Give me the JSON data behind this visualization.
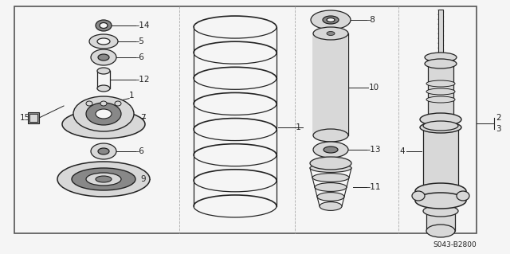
{
  "bg_color": "#f5f5f5",
  "border_color": "#555555",
  "line_color": "#222222",
  "part_fill": "#d8d8d8",
  "part_dark": "#888888",
  "diagram_code": "S043-B2800"
}
